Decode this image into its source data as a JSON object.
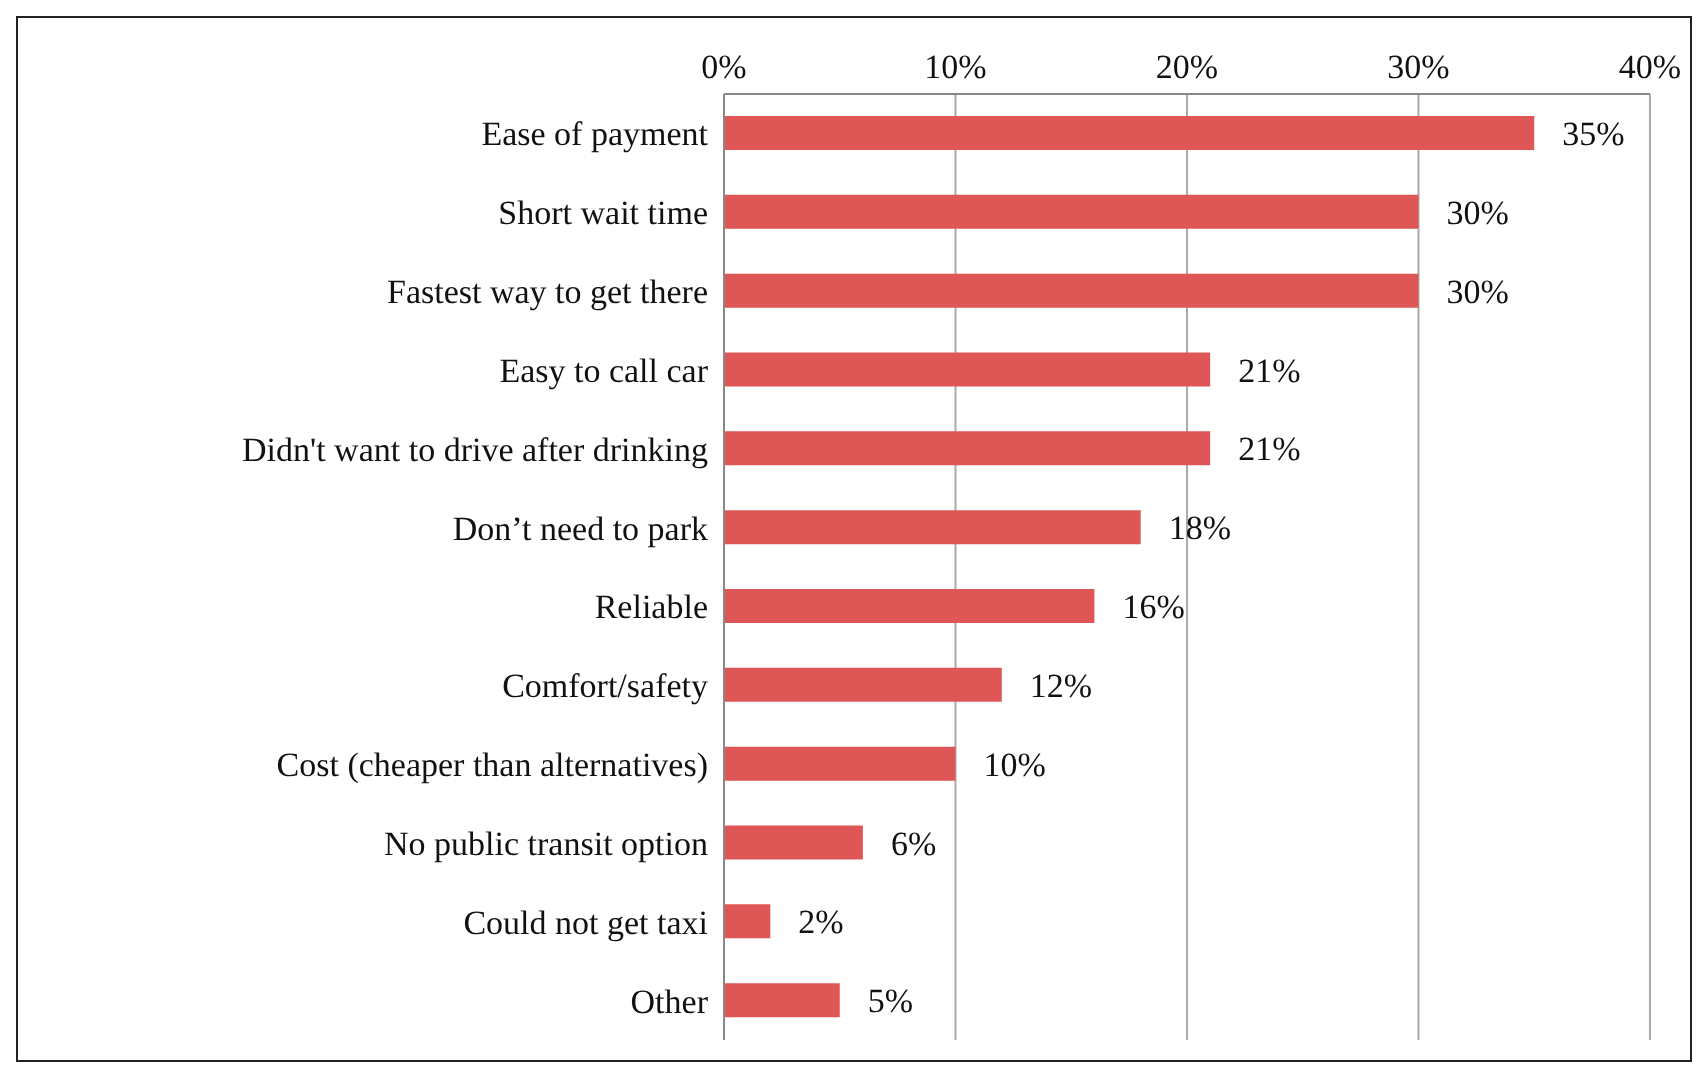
{
  "chart_data": {
    "type": "bar",
    "orientation": "horizontal",
    "categories": [
      "Ease of payment",
      "Short wait time",
      "Fastest way to get there",
      "Easy to call car",
      "Didn't want to drive after drinking",
      "Don’t need to park",
      "Reliable",
      "Comfort/safety",
      "Cost (cheaper than alternatives)",
      "No public transit option",
      "Could not get taxi",
      "Other"
    ],
    "values": [
      35,
      30,
      30,
      21,
      21,
      18,
      16,
      12,
      10,
      6,
      2,
      5
    ],
    "value_labels": [
      "35%",
      "30%",
      "30%",
      "21%",
      "21%",
      "18%",
      "16%",
      "12%",
      "10%",
      "6%",
      "2%",
      "5%"
    ],
    "color": "#df5656",
    "xlim": [
      0,
      40
    ],
    "xticks": [
      {
        "value": 0,
        "label": "0%"
      },
      {
        "value": 10,
        "label": "10%"
      },
      {
        "value": 20,
        "label": "20%"
      },
      {
        "value": 30,
        "label": "30%"
      },
      {
        "value": 40,
        "label": "40%"
      }
    ],
    "grid": "x",
    "legend": false
  }
}
